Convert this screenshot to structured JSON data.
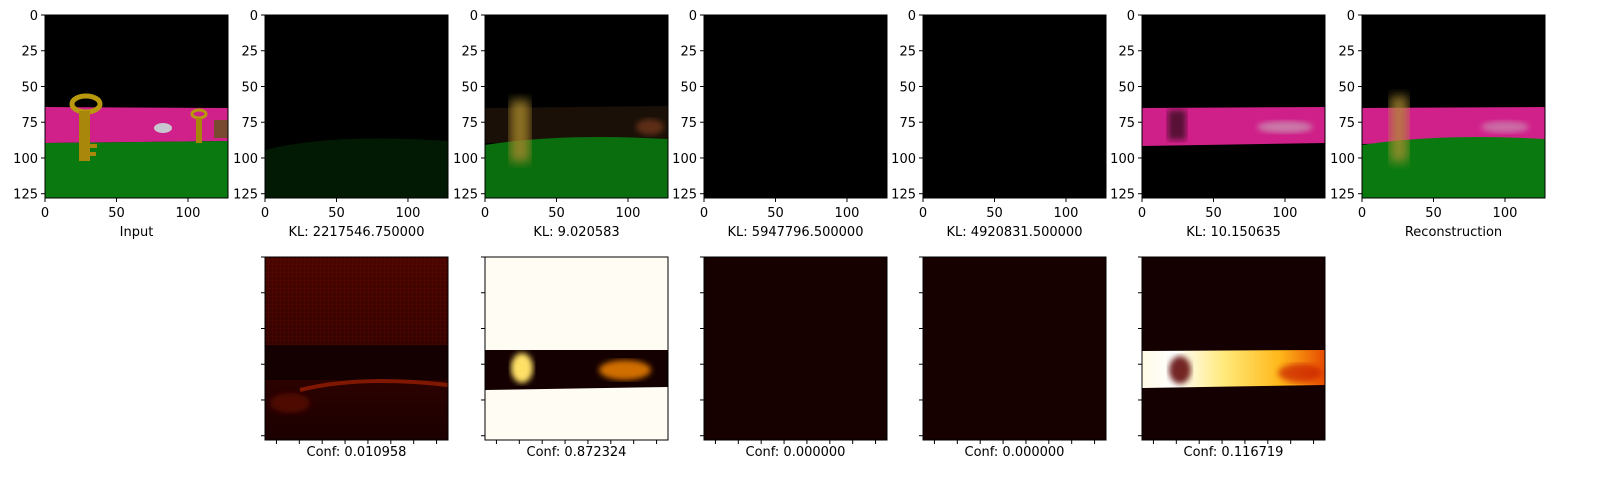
{
  "figure": {
    "top_row": [
      {
        "caption": "Input",
        "scene": "full"
      },
      {
        "caption": "KL: 2217546.750000",
        "scene": "dark-ground"
      },
      {
        "caption": "KL: 9.020583",
        "scene": "blur-ground"
      },
      {
        "caption": "KL: 5947796.500000",
        "scene": "black"
      },
      {
        "caption": "KL: 4920831.500000",
        "scene": "black"
      },
      {
        "caption": "KL: 10.150635",
        "scene": "wall-only"
      },
      {
        "caption": "Reconstruction",
        "scene": "recon"
      }
    ],
    "bottom_row": [
      {
        "caption": "Conf: 0.010958",
        "map": "dim"
      },
      {
        "caption": "Conf: 0.872324",
        "map": "bright-ground"
      },
      {
        "caption": "Conf: 0.000000",
        "map": "zero"
      },
      {
        "caption": "Conf: 0.000000",
        "map": "zero"
      },
      {
        "caption": "Conf: 0.116719",
        "map": "bright-wall"
      }
    ],
    "y_ticks": [
      "0",
      "25",
      "50",
      "75",
      "100",
      "125"
    ],
    "x_ticks": [
      "0",
      "50",
      "100"
    ],
    "colors": {
      "sky": "#000000",
      "wall": "#d0208a",
      "ground": "#0a7a10",
      "key": "#b8980c",
      "heat_low": "#170000",
      "heat_high": "#ffffff"
    }
  }
}
